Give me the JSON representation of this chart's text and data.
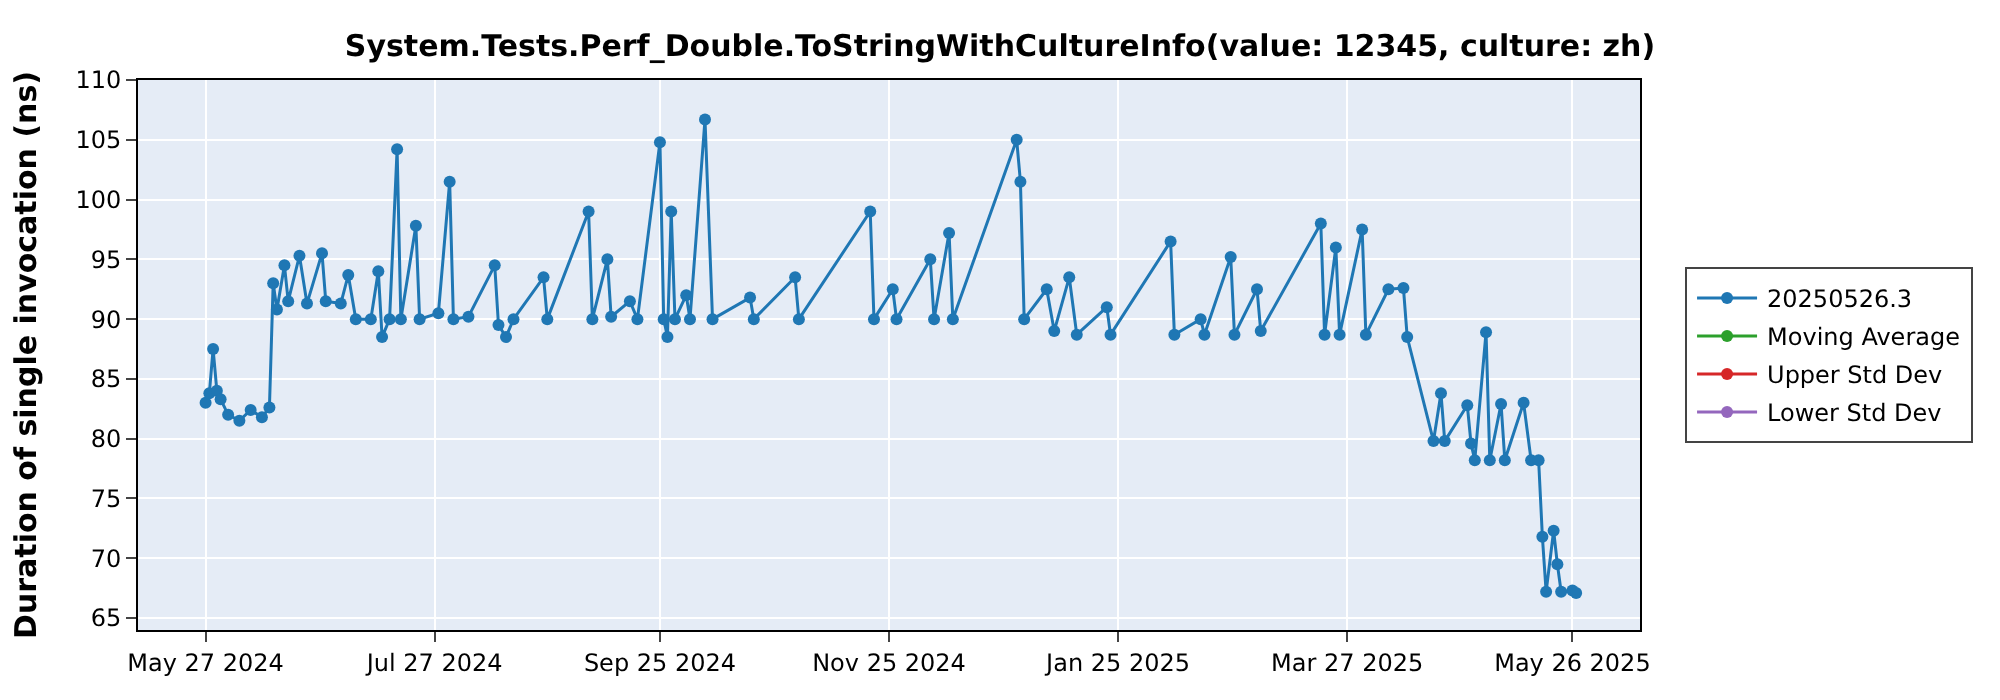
{
  "chart_data": {
    "type": "line",
    "title": "System.Tests.Perf_Double.ToStringWithCultureInfo(value: 12345, culture: zh)",
    "ylabel": "Duration of single invocation (ns)",
    "x": [
      "2024-05-27",
      "2024-05-28",
      "2024-05-29",
      "2024-05-30",
      "2024-05-31",
      "2024-06-02",
      "2024-06-05",
      "2024-06-08",
      "2024-06-11",
      "2024-06-13",
      "2024-06-14",
      "2024-06-15",
      "2024-06-17",
      "2024-06-18",
      "2024-06-21",
      "2024-06-23",
      "2024-06-27",
      "2024-06-28",
      "2024-07-02",
      "2024-07-04",
      "2024-07-06",
      "2024-07-10",
      "2024-07-12",
      "2024-07-13",
      "2024-07-15",
      "2024-07-17",
      "2024-07-18",
      "2024-07-22",
      "2024-07-23",
      "2024-07-28",
      "2024-07-31",
      "2024-08-01",
      "2024-08-05",
      "2024-08-12",
      "2024-08-13",
      "2024-08-15",
      "2024-08-17",
      "2024-08-25",
      "2024-08-26",
      "2024-09-06",
      "2024-09-07",
      "2024-09-11",
      "2024-09-12",
      "2024-09-17",
      "2024-09-19",
      "2024-09-25",
      "2024-09-26",
      "2024-09-27",
      "2024-09-28",
      "2024-09-29",
      "2024-10-02",
      "2024-10-03",
      "2024-10-07",
      "2024-10-09",
      "2024-10-19",
      "2024-10-20",
      "2024-10-31",
      "2024-11-01",
      "2024-11-20",
      "2024-11-21",
      "2024-11-26",
      "2024-11-27",
      "2024-12-06",
      "2024-12-07",
      "2024-12-11",
      "2024-12-12",
      "2024-12-29",
      "2024-12-30",
      "2024-12-31",
      "2025-01-06",
      "2025-01-08",
      "2025-01-12",
      "2025-01-14",
      "2025-01-22",
      "2025-01-23",
      "2025-02-08",
      "2025-02-09",
      "2025-02-16",
      "2025-02-17",
      "2025-02-24",
      "2025-02-25",
      "2025-03-03",
      "2025-03-04",
      "2025-03-20",
      "2025-03-21",
      "2025-03-24",
      "2025-03-25",
      "2025-03-31",
      "2025-04-01",
      "2025-04-07",
      "2025-04-11",
      "2025-04-12",
      "2025-04-19",
      "2025-04-21",
      "2025-04-22",
      "2025-04-28",
      "2025-04-29",
      "2025-04-30",
      "2025-05-03",
      "2025-05-04",
      "2025-05-07",
      "2025-05-08",
      "2025-05-13",
      "2025-05-15",
      "2025-05-17",
      "2025-05-18",
      "2025-05-19",
      "2025-05-21",
      "2025-05-22",
      "2025-05-23",
      "2025-05-26",
      "2025-05-27"
    ],
    "series": [
      {
        "name": "20250526.3",
        "color": "#1f77b4",
        "values": [
          83.0,
          83.8,
          87.5,
          84.0,
          83.3,
          82.0,
          81.5,
          82.4,
          81.8,
          82.6,
          93.0,
          90.8,
          94.5,
          91.5,
          95.3,
          91.3,
          95.5,
          91.5,
          91.3,
          93.7,
          90.0,
          90.0,
          94.0,
          88.5,
          90.0,
          104.2,
          90.0,
          97.8,
          90.0,
          90.5,
          101.5,
          90.0,
          90.2,
          94.5,
          89.5,
          88.5,
          90.0,
          93.5,
          90.0,
          99.0,
          90.0,
          95.0,
          90.2,
          91.5,
          90.0,
          104.8,
          90.0,
          88.5,
          99.0,
          90.0,
          92.0,
          90.0,
          106.7,
          90.0,
          91.8,
          90.0,
          93.5,
          90.0,
          99.0,
          90.0,
          92.5,
          90.0,
          95.0,
          90.0,
          97.2,
          90.0,
          105.0,
          101.5,
          90.0,
          92.5,
          89.0,
          93.5,
          88.7,
          91.0,
          88.7,
          96.5,
          88.7,
          90.0,
          88.7,
          95.2,
          88.7,
          92.5,
          89.0,
          98.0,
          88.7,
          96.0,
          88.7,
          97.5,
          88.7,
          92.5,
          92.6,
          88.5,
          79.8,
          83.8,
          79.8,
          82.8,
          79.6,
          78.2,
          88.9,
          78.2,
          82.9,
          78.2,
          83.0,
          78.2,
          78.2,
          71.8,
          67.2,
          72.3,
          69.5,
          67.2,
          67.3,
          67.1
        ]
      },
      {
        "name": "Moving Average",
        "color": "#2ca02c",
        "values": [
          null,
          null,
          null,
          null,
          null,
          null,
          null,
          null,
          null,
          null,
          null,
          null,
          null,
          null,
          null,
          null,
          null,
          null,
          null,
          null,
          null,
          null,
          null,
          null,
          null,
          null,
          null,
          null,
          null,
          null,
          null,
          null,
          null,
          null,
          null,
          null,
          null,
          null,
          null,
          null,
          null,
          null,
          null,
          null,
          null,
          null,
          null,
          null,
          null,
          null,
          null,
          null,
          null,
          null,
          null,
          null,
          null,
          null,
          null,
          null,
          null,
          null,
          null,
          null,
          null,
          null,
          null,
          null,
          null,
          null,
          null,
          null,
          null,
          null,
          null,
          null,
          null,
          null,
          null,
          null,
          null,
          null,
          null,
          null,
          null,
          null,
          null,
          null,
          null,
          null,
          null,
          null,
          null,
          null,
          null,
          null,
          null,
          null,
          null,
          null,
          null,
          null,
          null,
          null,
          null,
          null,
          null,
          null,
          null,
          null,
          null,
          null
        ]
      },
      {
        "name": "Upper Std Dev",
        "color": "#d62728",
        "values": [
          null,
          null,
          null,
          null,
          null,
          null,
          null,
          null,
          null,
          null,
          null,
          null,
          null,
          null,
          null,
          null,
          null,
          null,
          null,
          null,
          null,
          null,
          null,
          null,
          null,
          null,
          null,
          null,
          null,
          null,
          null,
          null,
          null,
          null,
          null,
          null,
          null,
          null,
          null,
          null,
          null,
          null,
          null,
          null,
          null,
          null,
          null,
          null,
          null,
          null,
          null,
          null,
          null,
          null,
          null,
          null,
          null,
          null,
          null,
          null,
          null,
          null,
          null,
          null,
          null,
          null,
          null,
          null,
          null,
          null,
          null,
          null,
          null,
          null,
          null,
          null,
          null,
          null,
          null,
          null,
          null,
          null,
          null,
          null,
          null,
          null,
          null,
          null,
          null,
          null,
          null,
          null,
          null,
          null,
          null,
          null,
          null,
          null,
          null,
          null,
          null,
          null,
          null,
          null,
          null,
          null,
          null,
          null,
          null,
          null,
          null,
          null
        ]
      },
      {
        "name": "Lower Std Dev",
        "color": "#9467bd",
        "values": [
          null,
          null,
          null,
          null,
          null,
          null,
          null,
          null,
          null,
          null,
          null,
          null,
          null,
          null,
          null,
          null,
          null,
          null,
          null,
          null,
          null,
          null,
          null,
          null,
          null,
          null,
          null,
          null,
          null,
          null,
          null,
          null,
          null,
          null,
          null,
          null,
          null,
          null,
          null,
          null,
          null,
          null,
          null,
          null,
          null,
          null,
          null,
          null,
          null,
          null,
          null,
          null,
          null,
          null,
          null,
          null,
          null,
          null,
          null,
          null,
          null,
          null,
          null,
          null,
          null,
          null,
          null,
          null,
          null,
          null,
          null,
          null,
          null,
          null,
          null,
          null,
          null,
          null,
          null,
          null,
          null,
          null,
          null,
          null,
          null,
          null,
          null,
          null,
          null,
          null,
          null,
          null,
          null,
          null,
          null,
          null,
          null,
          null,
          null,
          null,
          null,
          null,
          null,
          null,
          null,
          null,
          null,
          null,
          null,
          null,
          null,
          null
        ]
      }
    ],
    "xlim": [
      "2024-05-09",
      "2025-06-13"
    ],
    "xticks": [
      {
        "value": "2024-05-27",
        "label": "May 27 2024"
      },
      {
        "value": "2024-07-27",
        "label": "Jul 27 2024"
      },
      {
        "value": "2024-09-25",
        "label": "Sep 25 2024"
      },
      {
        "value": "2024-11-25",
        "label": "Nov 25 2024"
      },
      {
        "value": "2025-01-25",
        "label": "Jan 25 2025"
      },
      {
        "value": "2025-03-27",
        "label": "Mar 27 2025"
      },
      {
        "value": "2025-05-26",
        "label": "May 26 2025"
      }
    ],
    "ylim": [
      64,
      110
    ],
    "yticks": [
      65,
      70,
      75,
      80,
      85,
      90,
      95,
      100,
      105,
      110
    ],
    "grid": true,
    "legend": "right",
    "marker": "circle",
    "line_style": "solid"
  }
}
